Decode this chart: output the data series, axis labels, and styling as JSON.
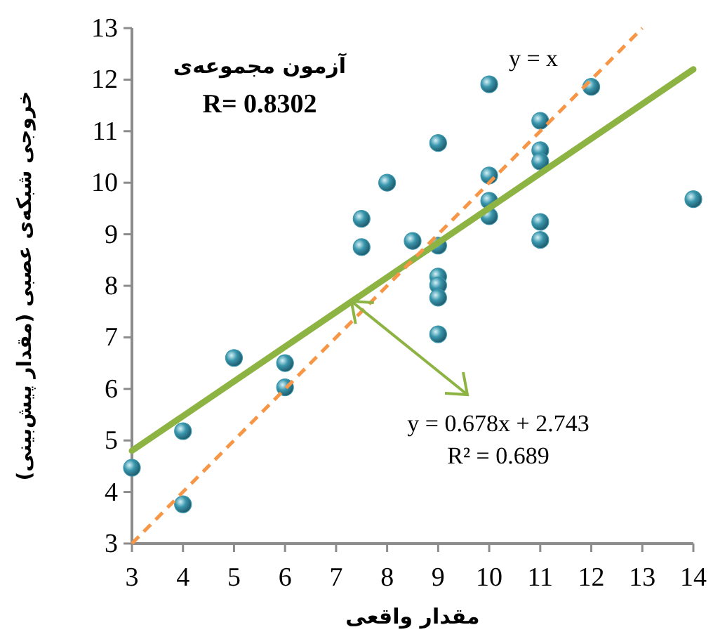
{
  "chart_data": {
    "type": "scatter",
    "title": "آزمون مجموعه‌ی",
    "subtitle": "R= 0.8302",
    "xlabel": "مقدار واقعی",
    "ylabel": "خروجی شبکه‌ی عصبی (مقدار پیش‌بینی)",
    "xlim": [
      3,
      14
    ],
    "xticks": [
      3,
      4,
      5,
      6,
      7,
      8,
      9,
      10,
      11,
      12,
      13,
      14
    ],
    "ylim": [
      3,
      13
    ],
    "yticks": [
      3,
      4,
      5,
      6,
      7,
      8,
      9,
      10,
      11,
      12,
      13
    ],
    "grid": false,
    "series": [
      {
        "type": "scatter",
        "marker": "circle",
        "color": "#3a97ad",
        "x": [
          3,
          4,
          4,
          5,
          6,
          6,
          7.5,
          7.5,
          8,
          8.5,
          9,
          9,
          9,
          9,
          9,
          9,
          10,
          10,
          10,
          10,
          11,
          11,
          11,
          11,
          11,
          12,
          14
        ],
        "values": [
          4.47,
          5.18,
          3.76,
          6.6,
          6.5,
          6.03,
          9.3,
          8.75,
          10.0,
          8.87,
          10.77,
          8.78,
          8.18,
          8.01,
          7.77,
          7.06,
          11.91,
          10.14,
          9.65,
          9.35,
          11.2,
          10.63,
          10.41,
          9.24,
          8.89,
          11.86,
          9.68
        ]
      },
      {
        "type": "line",
        "color": "#8db443",
        "line_style": "solid",
        "x": [
          3,
          14
        ],
        "values": [
          4.8,
          12.2
        ]
      },
      {
        "type": "line",
        "color": "#f79646",
        "line_style": "dashed",
        "x": [
          3,
          13
        ],
        "values": [
          3,
          13
        ]
      }
    ],
    "annotations": [
      "y = x",
      {
        "text": "y = 0.678x + 2.743",
        "x": 7.3,
        "y": 7.7
      },
      "R² = 0.689"
    ]
  }
}
